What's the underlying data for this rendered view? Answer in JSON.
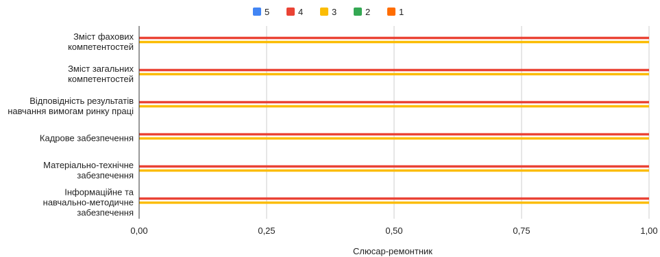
{
  "chart_data": {
    "type": "bar",
    "orientation": "horizontal",
    "xlabel": "Слюсар-ремонтник",
    "xlim": [
      0,
      1
    ],
    "xticks": [
      "0,00",
      "0,25",
      "0,50",
      "0,75",
      "1,00"
    ],
    "xtick_values": [
      0,
      0.25,
      0.5,
      0.75,
      1
    ],
    "grid": true,
    "legend_position": "top",
    "categories": [
      [
        "Зміст фахових",
        "компетентостей"
      ],
      [
        "Зміст загальних",
        "компетентостей"
      ],
      [
        "Відповідність результатів",
        "навчання вимогам ринку праці"
      ],
      [
        "Кадрове забезпечення"
      ],
      [
        "Матеріально-технічне",
        "забезпечення"
      ],
      [
        "Інформаційне та",
        "навчально-методичне",
        "забезпечення"
      ]
    ],
    "series": [
      {
        "name": "5",
        "color": "#4285f4",
        "values": [
          0,
          0,
          0,
          0,
          0,
          0
        ]
      },
      {
        "name": "4",
        "color": "#ea4335",
        "values": [
          1,
          1,
          1,
          1,
          1,
          1
        ]
      },
      {
        "name": "3",
        "color": "#fbbc04",
        "values": [
          1,
          1,
          1,
          1,
          1,
          1
        ]
      },
      {
        "name": "2",
        "color": "#34a853",
        "values": [
          0,
          0,
          0,
          0,
          0,
          0
        ]
      },
      {
        "name": "1",
        "color": "#ff6d01",
        "values": [
          0,
          0,
          0,
          0,
          0,
          0
        ]
      }
    ]
  }
}
